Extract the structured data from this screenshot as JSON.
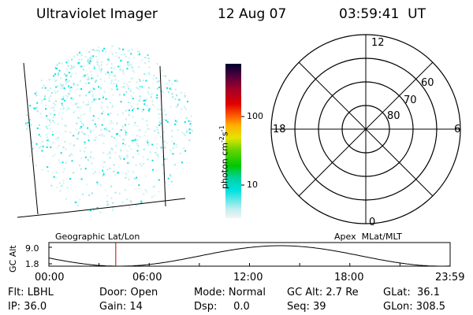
{
  "header": {
    "title": "Ultraviolet Imager",
    "date": "12 Aug 07",
    "time": "03:59:41  UT"
  },
  "colorbar": {
    "unit": "photon cm",
    "unit_sup1": "-2",
    "unit_s": "s",
    "unit_sup2": "-1",
    "ticks": [
      "100",
      "10"
    ]
  },
  "polar_plot": {
    "mlt_labels": {
      "top": "12",
      "left": "18",
      "right": "6",
      "bottom": "0"
    },
    "lat_labels": [
      "60",
      "70",
      "80"
    ]
  },
  "timeline": {
    "left_title": "Geographic Lat/Lon",
    "right_title": "Apex  MLat/MLT",
    "y_axis_label": "GC Alt",
    "y_ticks": [
      "9.0",
      "1.8"
    ],
    "x_ticks": [
      "00:00",
      "06:00",
      "12:00",
      "18:00",
      "23:59"
    ],
    "current_time_hours": 4.0
  },
  "status": {
    "row1": [
      {
        "key": "filter",
        "text": "Flt: LBHL"
      },
      {
        "key": "door",
        "text": "Door: Open"
      },
      {
        "key": "mode",
        "text": "Mode: Normal"
      },
      {
        "key": "gc_alt",
        "text": "GC Alt: 2.7 Re"
      },
      {
        "key": "glat",
        "text": "GLat:  36.1"
      }
    ],
    "row2": [
      {
        "key": "ip",
        "text": "IP: 36.0"
      },
      {
        "key": "gain",
        "text": "Gain: 14"
      },
      {
        "key": "dsp",
        "text": "Dsp:     0.0"
      },
      {
        "key": "seq",
        "text": "Seq: 39"
      },
      {
        "key": "glon",
        "text": "GLon: 308.5"
      }
    ]
  },
  "colors": {
    "accent_cyan": "#00e0e0",
    "light_cyan": "#bff0f0",
    "current_time_marker": "#cc0000"
  }
}
